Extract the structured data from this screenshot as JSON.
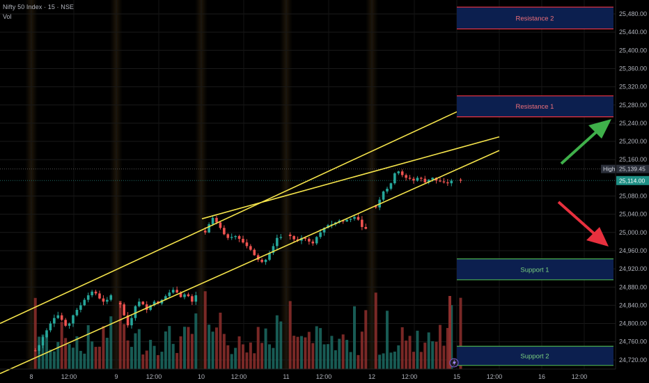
{
  "header": {
    "symbol_title": "Nifty 50 Index · 15 · NSE",
    "volume_label": "Vol"
  },
  "price_axis": {
    "labels": [
      "25,480.00",
      "25,440.00",
      "25,400.00",
      "25,360.00",
      "25,320.00",
      "25,280.00",
      "25,240.00",
      "25,200.00",
      "25,160.00",
      "25,080.00",
      "25,040.00",
      "25,000.00",
      "24,960.00",
      "24,920.00",
      "24,880.00",
      "24,840.00",
      "24,800.00",
      "24,760.00",
      "24,720.00"
    ],
    "high_tag": "High",
    "high_value": "25,139.45",
    "last_value": "25,114.00"
  },
  "time_axis": {
    "labels": [
      "8",
      "12:00",
      "9",
      "12:00",
      "10",
      "12:00",
      "11",
      "12:00",
      "12",
      "12:00",
      "15",
      "12:00",
      "16",
      "12:00"
    ]
  },
  "zones": {
    "resistance_2": "Resistance 2",
    "resistance_1": "Resistance 1",
    "support_1": "Support 1",
    "support_2": "Support 2"
  },
  "colors": {
    "background": "#000000",
    "up": "#26a69a",
    "down": "#ef5350",
    "trendline": "#f5e44b",
    "resistance": "#f23645",
    "support": "#4caf50",
    "zone_fill": "#0c1f4f",
    "arrow_up": "#3fb04a",
    "arrow_down": "#e8303e",
    "text": "#b2b5be"
  },
  "chart_data": {
    "type": "candlestick",
    "title": "Nifty 50 Index · 15 · NSE",
    "interval": "15",
    "x_ticks": [
      "8",
      "12:00",
      "9",
      "12:00",
      "10",
      "12:00",
      "11",
      "12:00",
      "12",
      "12:00",
      "15",
      "12:00",
      "16",
      "12:00"
    ],
    "y_ticks": [
      25480,
      25440,
      25400,
      25360,
      25320,
      25280,
      25240,
      25200,
      25160,
      25080,
      25040,
      25000,
      24960,
      24920,
      24880,
      24840,
      24800,
      24760,
      24720
    ],
    "ylim": [
      24705,
      25500
    ],
    "grid": true,
    "high": 25139.45,
    "last": 25114.0,
    "price_path": [
      {
        "day": "8",
        "points": [
          24740,
          24752,
          24770,
          24785,
          24800,
          24812,
          24818,
          24808,
          24795,
          24800,
          24818,
          24830,
          24840,
          24852,
          24862,
          24870,
          24866,
          24855,
          24848,
          24852,
          24862
        ]
      },
      {
        "day": "9",
        "points": [
          24842,
          24818,
          24796,
          24812,
          24838,
          24848,
          24842,
          24830,
          24840,
          24848,
          24844,
          24852,
          24860,
          24868,
          24874,
          24868,
          24858,
          24864,
          24860,
          24848,
          24862
        ]
      },
      {
        "day": "10",
        "points": [
          25000,
          25018,
          25032,
          25022,
          25010,
          24996,
          24988,
          24990,
          24992,
          24986,
          24978,
          24970,
          24962,
          24950,
          24940,
          24935,
          24940,
          24955,
          24970,
          24988,
          24990
        ]
      },
      {
        "day": "11",
        "points": [
          24992,
          24985,
          24982,
          24988,
          24986,
          24980,
          24976,
          24990,
          25000,
          25010,
          25016,
          25018,
          25022,
          25026,
          25024,
          25028,
          25030,
          25034,
          25028,
          25012,
          25008
        ]
      },
      {
        "day": "12",
        "points": [
          25055,
          25072,
          25090,
          25096,
          25108,
          25130,
          25134,
          25126,
          25120,
          25118,
          25114,
          25120,
          25118,
          25110,
          25116,
          25120,
          25114,
          25112,
          25110,
          25108,
          25114
        ]
      },
      {
        "day": "15",
        "points": [
          25114
        ]
      }
    ],
    "trendlines": [
      {
        "name": "",
        "from": {
          "x": "8",
          "price": 24800
        },
        "to": {
          "x": "15",
          "price": 25265
        }
      },
      {
        "name": "",
        "from": {
          "x": "8",
          "price": 24690
        },
        "to": {
          "x": "15 12:00",
          "price": 25180
        }
      },
      {
        "name": "",
        "from": {
          "x": "10",
          "price": 25030
        },
        "to": {
          "x": "15 12:00",
          "price": 25210
        }
      }
    ],
    "zones": [
      {
        "label": "Resistance 2",
        "top": 25495,
        "bottom": 25447
      },
      {
        "label": "Resistance 1",
        "top": 25300,
        "bottom": 25254
      },
      {
        "label": "Support 1",
        "top": 24942,
        "bottom": 24896
      },
      {
        "label": "Support 2",
        "top": 24750,
        "bottom": 24708
      }
    ],
    "volume": {
      "label": "Vol",
      "relative_peaks": [
        0.6,
        0.85,
        0.9,
        0.75,
        0.85,
        0.7,
        0.8,
        0.85
      ]
    }
  }
}
